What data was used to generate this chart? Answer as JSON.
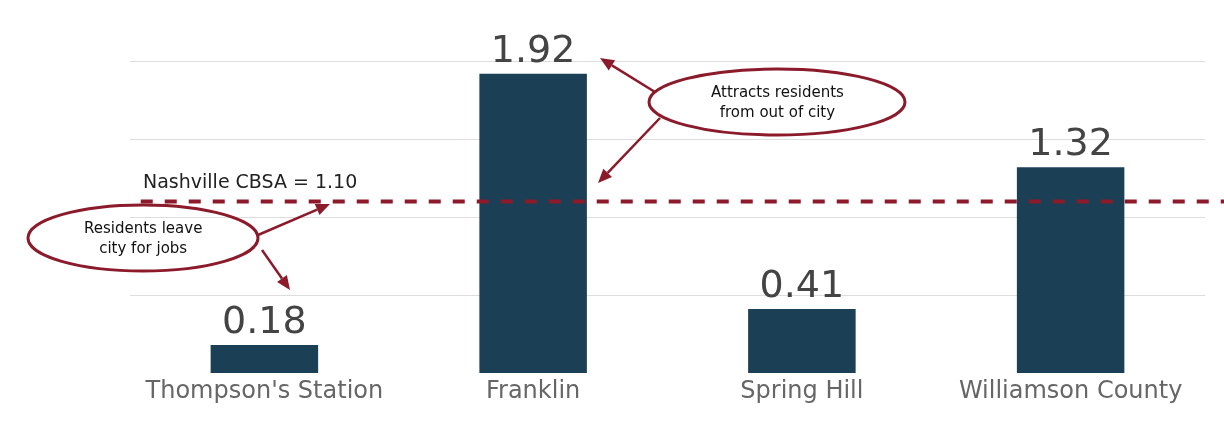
{
  "chart_data": {
    "type": "bar",
    "categories": [
      "Thompson's Station",
      "Franklin",
      "Spring Hill",
      "Williamson County"
    ],
    "values": [
      0.18,
      1.92,
      0.41,
      1.32
    ],
    "color": "#1b3f55",
    "data_labels": true,
    "grid": "y",
    "tick_labels": "x",
    "ref_lines": [
      {
        "axis": "y",
        "value": 1.1,
        "label": "Nashville CBSA = 1.10",
        "color": "#8b1a2b",
        "line_style": "dashed"
      }
    ],
    "annotations": [
      "Attracts residents\nfrom out of city",
      "Residents leave\ncity for jobs"
    ]
  }
}
